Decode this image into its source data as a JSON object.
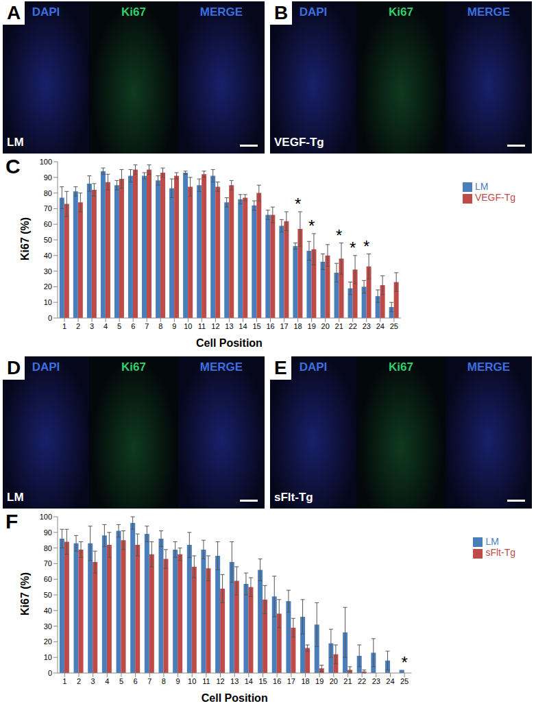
{
  "image_panels": [
    {
      "letter": "A",
      "channels": [
        "DAPI",
        "Ki67",
        "MERGE"
      ],
      "label": "LM"
    },
    {
      "letter": "B",
      "channels": [
        "DAPI",
        "Ki67",
        "MERGE"
      ],
      "label": "VEGF-Tg"
    },
    {
      "letter": "D",
      "channels": [
        "DAPI",
        "Ki67",
        "MERGE"
      ],
      "label": "LM"
    },
    {
      "letter": "E",
      "channels": [
        "DAPI",
        "Ki67",
        "MERGE"
      ],
      "label": "sFlt-Tg"
    }
  ],
  "chart_data": [
    {
      "type": "bar",
      "title": "C",
      "x_label": "Cell Position",
      "y_label": "Ki67 (%)",
      "categories": [
        1,
        2,
        3,
        4,
        5,
        6,
        7,
        8,
        9,
        10,
        11,
        12,
        13,
        14,
        15,
        16,
        17,
        18,
        19,
        20,
        21,
        22,
        23,
        24,
        25
      ],
      "series": [
        {
          "name": "LM",
          "color": "#4a7ebb",
          "values": [
            77,
            81,
            86,
            94,
            85,
            91,
            91,
            88,
            83,
            93,
            85,
            91,
            74,
            76,
            72,
            66,
            59,
            46,
            43,
            36,
            29,
            19,
            20,
            14,
            7
          ],
          "errors": [
            7,
            3,
            5,
            2,
            3,
            4,
            2,
            3,
            6,
            1,
            4,
            4,
            3,
            3,
            3,
            3,
            4,
            2,
            6,
            5,
            6,
            4,
            4,
            4,
            3
          ]
        },
        {
          "name": "VEGF-Tg",
          "color": "#be4b48",
          "values": [
            73,
            74,
            82,
            87,
            89,
            95,
            95,
            93,
            91,
            84,
            92,
            84,
            85,
            77,
            80,
            66,
            62,
            57,
            44,
            40,
            38,
            31,
            33,
            21,
            23
          ],
          "errors": [
            8,
            6,
            4,
            5,
            6,
            3,
            3,
            3,
            2,
            6,
            2,
            3,
            3,
            2,
            5,
            5,
            6,
            11,
            10,
            7,
            10,
            9,
            8,
            6,
            6
          ]
        }
      ],
      "ylim": [
        0,
        100
      ],
      "yticks": [
        0,
        10,
        20,
        30,
        40,
        50,
        60,
        70,
        80,
        90,
        100
      ],
      "legend": "right",
      "annotations": [
        {
          "text": "*",
          "category": 18
        },
        {
          "text": "*",
          "category": 19
        },
        {
          "text": "*",
          "category": 21
        },
        {
          "text": "*",
          "category": 22
        },
        {
          "text": "*",
          "category": 23
        }
      ]
    },
    {
      "type": "bar",
      "title": "F",
      "x_label": "Cell Position",
      "y_label": "Ki67 (%)",
      "categories": [
        1,
        2,
        3,
        4,
        5,
        6,
        7,
        8,
        9,
        10,
        11,
        12,
        13,
        14,
        15,
        16,
        17,
        18,
        19,
        20,
        21,
        22,
        23,
        24,
        25
      ],
      "series": [
        {
          "name": "LM",
          "color": "#4a7ebb",
          "values": [
            86,
            83,
            83,
            88,
            91,
            96,
            89,
            86,
            79,
            82,
            79,
            75,
            71,
            57,
            66,
            49,
            46,
            36,
            31,
            19,
            26,
            11,
            13,
            8,
            2
          ],
          "errors": [
            6,
            5,
            11,
            7,
            4,
            4,
            5,
            5,
            5,
            8,
            6,
            9,
            13,
            7,
            7,
            13,
            7,
            11,
            14,
            9,
            16,
            7,
            9,
            6,
            0
          ]
        },
        {
          "name": "sFlt-Tg",
          "color": "#be4b48",
          "values": [
            84,
            79,
            71,
            82,
            85,
            82,
            76,
            73,
            76,
            68,
            67,
            54,
            59,
            55,
            47,
            38,
            29,
            16,
            3,
            12,
            2,
            1,
            0,
            0,
            0
          ],
          "errors": [
            8,
            5,
            7,
            8,
            6,
            7,
            8,
            6,
            4,
            7,
            8,
            9,
            9,
            6,
            9,
            9,
            6,
            2,
            2,
            6,
            2,
            1,
            0,
            0,
            0
          ]
        }
      ],
      "ylim": [
        0,
        100
      ],
      "yticks": [
        0,
        10,
        20,
        30,
        40,
        50,
        60,
        70,
        80,
        90,
        100
      ],
      "legend": "right",
      "annotations": [
        {
          "text": "*",
          "category": 25
        }
      ]
    }
  ]
}
